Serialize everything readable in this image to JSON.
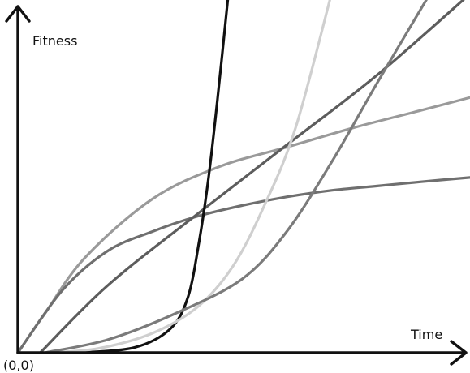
{
  "chart_data": {
    "type": "line",
    "xlabel": "Time",
    "ylabel": "Fitness",
    "origin_label": "(0,0)",
    "xlim": [
      0,
      10
    ],
    "ylim": [
      0,
      8
    ],
    "grid": false,
    "legend": "none",
    "ticks": "none",
    "series": [
      {
        "color": "#9a9a9a",
        "x": [
          0,
          0.6,
          1.5,
          3,
          4.5,
          6,
          7.5,
          9,
          10.1
        ],
        "y": [
          0,
          0.9,
          2.2,
          3.55,
          4.3,
          4.75,
          5.2,
          5.6,
          5.9
        ]
      },
      {
        "color": "#6f6f6f",
        "x": [
          0,
          1,
          2,
          3,
          4,
          5,
          6,
          7,
          8,
          9,
          10.1
        ],
        "y": [
          0,
          1.45,
          2.35,
          2.8,
          3.15,
          3.4,
          3.6,
          3.75,
          3.85,
          3.95,
          4.05
        ]
      },
      {
        "color": "#5d5d5d",
        "x": [
          0.5,
          2,
          4,
          6,
          8,
          10.1
        ],
        "y": [
          0,
          1.55,
          3.2,
          4.8,
          6.4,
          8.3
        ]
      },
      {
        "color": "#111111",
        "x": [
          1.4,
          2.6,
          3.4,
          3.8,
          4.05,
          4.25,
          4.45,
          4.7
        ],
        "y": [
          0,
          0.12,
          0.55,
          1.3,
          2.6,
          4.0,
          5.8,
          8.3
        ]
      },
      {
        "color": "#cfcfcf",
        "x": [
          0.7,
          1.8,
          3,
          4,
          4.8,
          5.5,
          6.2,
          7
        ],
        "y": [
          0,
          0.1,
          0.45,
          1.05,
          2.0,
          3.4,
          5.2,
          8.3
        ]
      },
      {
        "color": "#7b7b7b",
        "x": [
          0.6,
          2,
          3.5,
          5,
          6,
          7,
          8,
          9.2
        ],
        "y": [
          0,
          0.3,
          0.9,
          1.7,
          2.8,
          4.4,
          6.2,
          8.3
        ]
      }
    ]
  }
}
